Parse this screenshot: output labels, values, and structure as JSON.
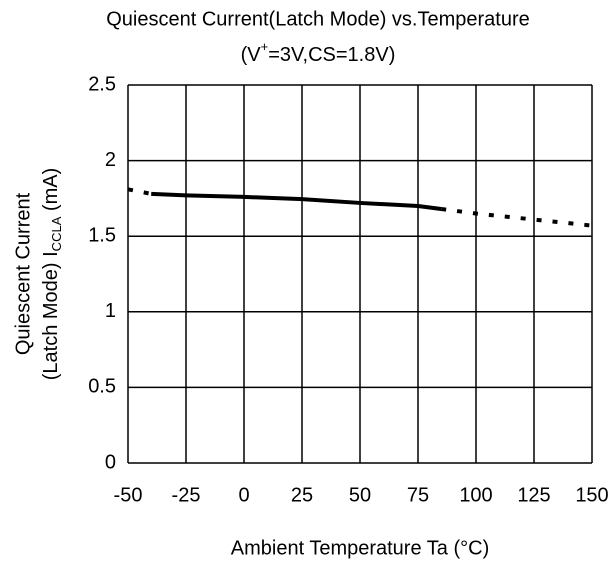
{
  "chart_data": {
    "type": "line",
    "title": "Quiescent Current(Latch Mode) vs.Temperature",
    "subtitle_parts": [
      "(V",
      "+",
      "=3V,CS=1.8V)"
    ],
    "ylabel_line1": "Quiescent Current",
    "ylabel_line2_parts": [
      "(Latch Mode)  I",
      "CCLA",
      "  (mA)"
    ],
    "xlabel": "Ambient Temperature   Ta  (°C)",
    "x": [
      -50,
      -40,
      -25,
      0,
      25,
      50,
      75,
      85,
      100,
      125,
      150
    ],
    "series": [
      {
        "color": "#000000",
        "style": "solid",
        "values": [
          null,
          1.78,
          1.77,
          1.76,
          1.745,
          1.72,
          1.7,
          1.68,
          null,
          null,
          null
        ]
      },
      {
        "color": "#000000",
        "style": "dotted",
        "values": [
          1.81,
          1.78,
          null,
          null,
          null,
          null,
          null,
          1.68,
          1.65,
          1.61,
          1.57
        ]
      }
    ],
    "xlim": [
      -50,
      150
    ],
    "xticks": [
      -50,
      -25,
      0,
      25,
      50,
      75,
      100,
      125,
      150
    ],
    "ylim": [
      0,
      2.5
    ],
    "yticks": [
      0,
      0.5,
      1,
      1.5,
      2,
      2.5
    ],
    "grid": true
  }
}
